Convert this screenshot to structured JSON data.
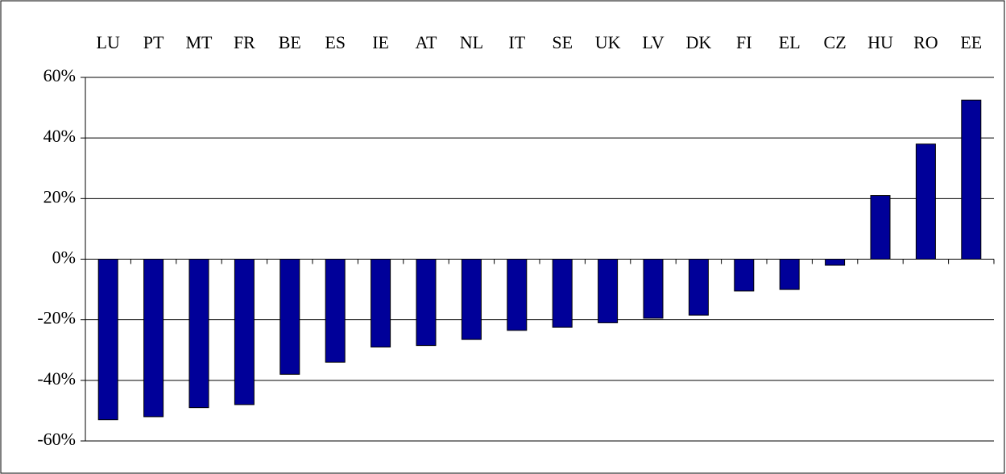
{
  "chart_data": {
    "type": "bar",
    "categories": [
      "LU",
      "PT",
      "MT",
      "FR",
      "BE",
      "ES",
      "IE",
      "AT",
      "NL",
      "IT",
      "SE",
      "UK",
      "LV",
      "DK",
      "FI",
      "EL",
      "CZ",
      "HU",
      "RO",
      "EE"
    ],
    "values": [
      -53,
      -52,
      -49,
      -48,
      -38,
      -34,
      -29,
      -28.5,
      -26.5,
      -23.5,
      -22.5,
      -21,
      -19.5,
      -18.5,
      -10.5,
      -10,
      -2,
      21,
      38,
      52.5
    ],
    "color": "#000099",
    "ylim": [
      -60,
      60
    ],
    "yticks": [
      {
        "value": -60,
        "label": "-60%"
      },
      {
        "value": -40,
        "label": "-40%"
      },
      {
        "value": -20,
        "label": "-20%"
      },
      {
        "value": 0,
        "label": "0%"
      },
      {
        "value": 20,
        "label": "20%"
      },
      {
        "value": 40,
        "label": "40%"
      },
      {
        "value": 60,
        "label": "60%"
      }
    ],
    "grid": true
  }
}
